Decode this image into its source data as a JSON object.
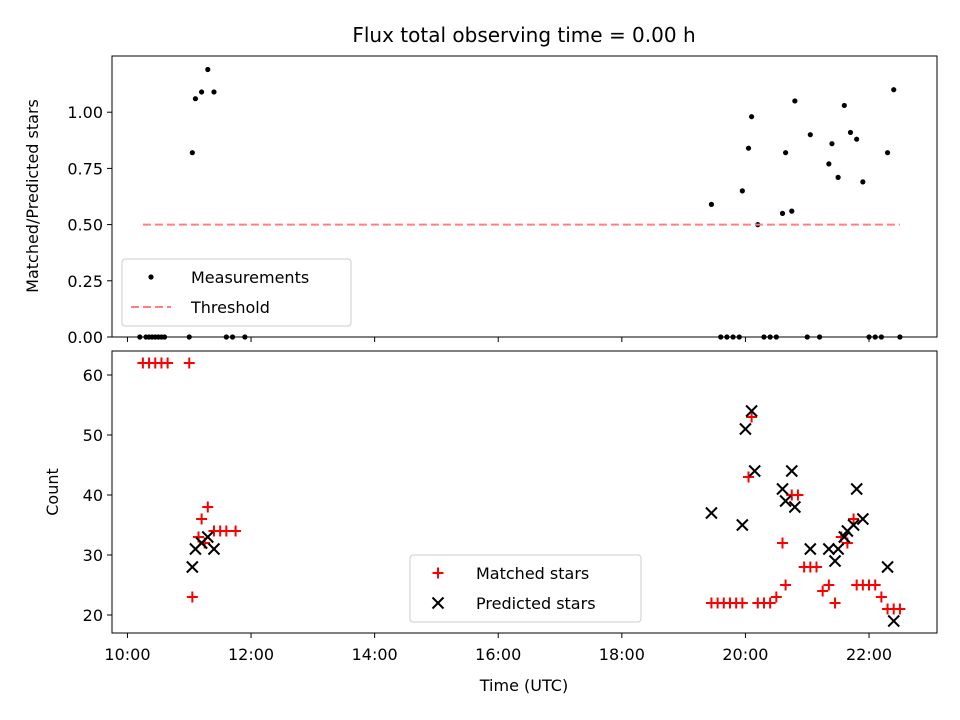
{
  "title": "Flux total observing time = 0.00 h",
  "chart_data": [
    {
      "type": "scatter",
      "ylabel": "Matched/Predicted stars",
      "xlim": [
        9.75,
        23.1
      ],
      "ylim": [
        0,
        1.25
      ],
      "yticks": [
        0.0,
        0.25,
        0.5,
        0.75,
        1.0
      ],
      "ytick_labels": [
        "0.00",
        "0.25",
        "0.50",
        "0.75",
        "1.00"
      ],
      "legend_position": "lower-left",
      "series": [
        {
          "name": "Measurements",
          "marker": "dot",
          "color": "#000000",
          "x": [
            10.3,
            10.4,
            10.5,
            10.6,
            11.05,
            11.1,
            11.2,
            11.3,
            11.4,
            10.2,
            10.35,
            10.45,
            10.55,
            11.0,
            11.6,
            11.7,
            11.9,
            19.45,
            19.6,
            19.7,
            19.8,
            19.9,
            19.95,
            20.05,
            20.1,
            20.2,
            20.3,
            20.4,
            20.5,
            20.6,
            20.65,
            20.75,
            20.8,
            21.0,
            21.05,
            21.2,
            21.35,
            21.4,
            21.5,
            21.6,
            21.7,
            21.8,
            21.9,
            22.0,
            22.1,
            22.2,
            22.3,
            22.4,
            22.5
          ],
          "y": [
            0,
            0,
            0,
            0,
            0.82,
            1.06,
            1.09,
            1.19,
            1.09,
            0,
            0,
            0,
            0,
            0,
            0,
            0,
            0,
            0.59,
            0,
            0,
            0,
            0,
            0.65,
            0.84,
            0.98,
            0.5,
            0,
            0,
            0,
            0.55,
            0.82,
            0.56,
            1.05,
            0,
            0.9,
            0,
            0.77,
            0.86,
            0.71,
            1.03,
            0.91,
            0.88,
            0.69,
            0,
            0,
            0,
            0.82,
            1.1,
            0
          ]
        },
        {
          "name": "Threshold",
          "kind": "line",
          "style": "dashed",
          "color": "#ff7f7f",
          "x": [
            10.25,
            22.5
          ],
          "y": [
            0.5,
            0.5
          ]
        }
      ]
    },
    {
      "type": "scatter",
      "xlabel": "Time (UTC)",
      "ylabel": "Count",
      "xlim": [
        9.75,
        23.1
      ],
      "ylim": [
        17,
        64
      ],
      "xticks": [
        10,
        12,
        14,
        16,
        18,
        20,
        22
      ],
      "xtick_labels": [
        "10:00",
        "12:00",
        "14:00",
        "16:00",
        "18:00",
        "20:00",
        "22:00"
      ],
      "yticks": [
        20,
        30,
        40,
        50,
        60
      ],
      "ytick_labels": [
        "20",
        "30",
        "40",
        "50",
        "60"
      ],
      "legend_position": "lower-center",
      "series": [
        {
          "name": "Matched stars",
          "marker": "plus",
          "color": "#ff0000",
          "x": [
            10.25,
            10.35,
            10.45,
            10.55,
            10.65,
            11.0,
            11.05,
            11.15,
            11.2,
            11.25,
            11.3,
            11.4,
            11.5,
            11.6,
            11.75,
            19.45,
            19.55,
            19.65,
            19.75,
            19.85,
            19.95,
            20.05,
            20.1,
            20.2,
            20.3,
            20.4,
            20.5,
            20.6,
            20.65,
            20.75,
            20.85,
            20.95,
            21.05,
            21.15,
            21.25,
            21.35,
            21.45,
            21.55,
            21.65,
            21.75,
            21.8,
            21.9,
            22.0,
            22.1,
            22.2,
            22.3,
            22.4,
            22.5
          ],
          "y": [
            62,
            62,
            62,
            62,
            62,
            62,
            23,
            33,
            36,
            32,
            38,
            34,
            34,
            34,
            34,
            22,
            22,
            22,
            22,
            22,
            22,
            43,
            53,
            22,
            22,
            22,
            23,
            32,
            25,
            40,
            40,
            28,
            28,
            28,
            24,
            25,
            22,
            33,
            32,
            36,
            25,
            25,
            25,
            25,
            23,
            21,
            21,
            21
          ]
        },
        {
          "name": "Predicted stars",
          "marker": "x",
          "color": "#000000",
          "x": [
            11.05,
            11.1,
            11.2,
            11.3,
            11.4,
            19.45,
            19.95,
            20.0,
            20.1,
            20.15,
            20.6,
            20.65,
            20.75,
            20.8,
            21.05,
            21.35,
            21.45,
            21.5,
            21.6,
            21.65,
            21.75,
            21.8,
            21.9,
            22.3,
            22.4
          ],
          "y": [
            28,
            31,
            32,
            33,
            31,
            37,
            35,
            51,
            54,
            44,
            41,
            39,
            44,
            38,
            31,
            31,
            29,
            31,
            33,
            34,
            35,
            41,
            36,
            28,
            19
          ]
        }
      ]
    }
  ]
}
